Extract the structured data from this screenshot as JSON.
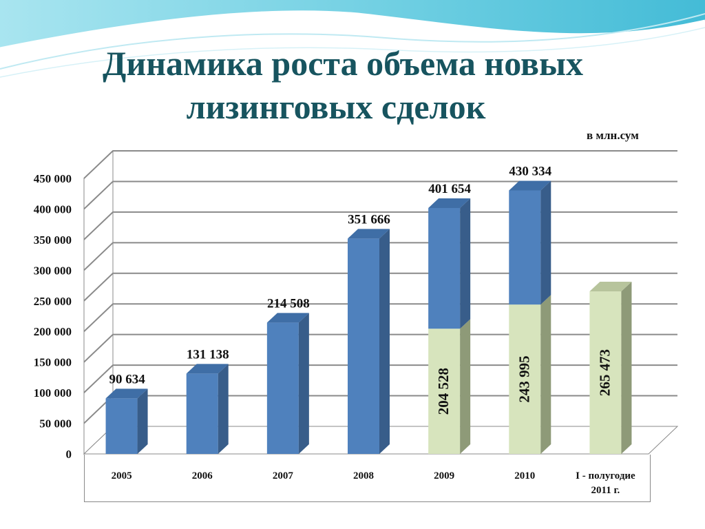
{
  "header": {
    "title_line1": "Динамика роста объема новых",
    "title_line2": "лизинговых сделок",
    "units": "в млн.сум"
  },
  "colors": {
    "title": "#17545f",
    "bar_blue": "#4f81bd",
    "bar_green": "#d7e4bd",
    "wave": "#5bc8de"
  },
  "chart_data": {
    "type": "bar",
    "stacked": true,
    "categories": [
      "2005",
      "2006",
      "2007",
      "2008",
      "2009",
      "2010",
      "I - полугодие\n2011 г."
    ],
    "series": [
      {
        "values": [
          null,
          null,
          null,
          null,
          204528,
          243995,
          265473
        ],
        "color": "#d7e4bd"
      },
      {
        "values": [
          90634,
          131138,
          214508,
          351666,
          197126,
          186339,
          null
        ],
        "color": "#4f81bd"
      }
    ],
    "totals": [
      90634,
      131138,
      214508,
      351666,
      401654,
      430334,
      null
    ],
    "total_labels": [
      "90 634",
      "131 138",
      "214 508",
      "351 666",
      "401 654",
      "430 334"
    ],
    "segment_labels": [
      null,
      null,
      null,
      null,
      "204 528",
      "243 995",
      "265 473"
    ],
    "y_ticks": [
      "0",
      "50 000",
      "100 000",
      "150 000",
      "200 000",
      "250 000",
      "300 000",
      "350 000",
      "400 000",
      "450 000"
    ],
    "ylim": [
      0,
      450000
    ],
    "grid": true,
    "style": "3d"
  }
}
